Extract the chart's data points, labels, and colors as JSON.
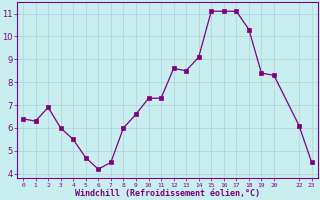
{
  "x": [
    0,
    1,
    2,
    3,
    4,
    5,
    6,
    7,
    8,
    9,
    10,
    11,
    12,
    13,
    14,
    15,
    16,
    17,
    18,
    19,
    20,
    22,
    23
  ],
  "y": [
    6.4,
    6.3,
    6.9,
    6.0,
    5.5,
    4.7,
    4.2,
    4.5,
    6.0,
    6.6,
    7.3,
    7.3,
    8.6,
    8.5,
    9.1,
    11.1,
    11.1,
    11.1,
    10.3,
    8.4,
    8.3,
    6.1,
    4.5
  ],
  "line_color": "#800080",
  "marker": "s",
  "background_color": "#c8eef0",
  "grid_color": "#b0d0d8",
  "xlabel": "Windchill (Refroidissement éolien,°C)",
  "xlabel_color": "#800080",
  "tick_color": "#800080",
  "ylim": [
    3.8,
    11.5
  ],
  "yticks": [
    4,
    5,
    6,
    7,
    8,
    9,
    10,
    11
  ],
  "axis_line_color": "#800080",
  "xlim": [
    -0.5,
    23.5
  ]
}
